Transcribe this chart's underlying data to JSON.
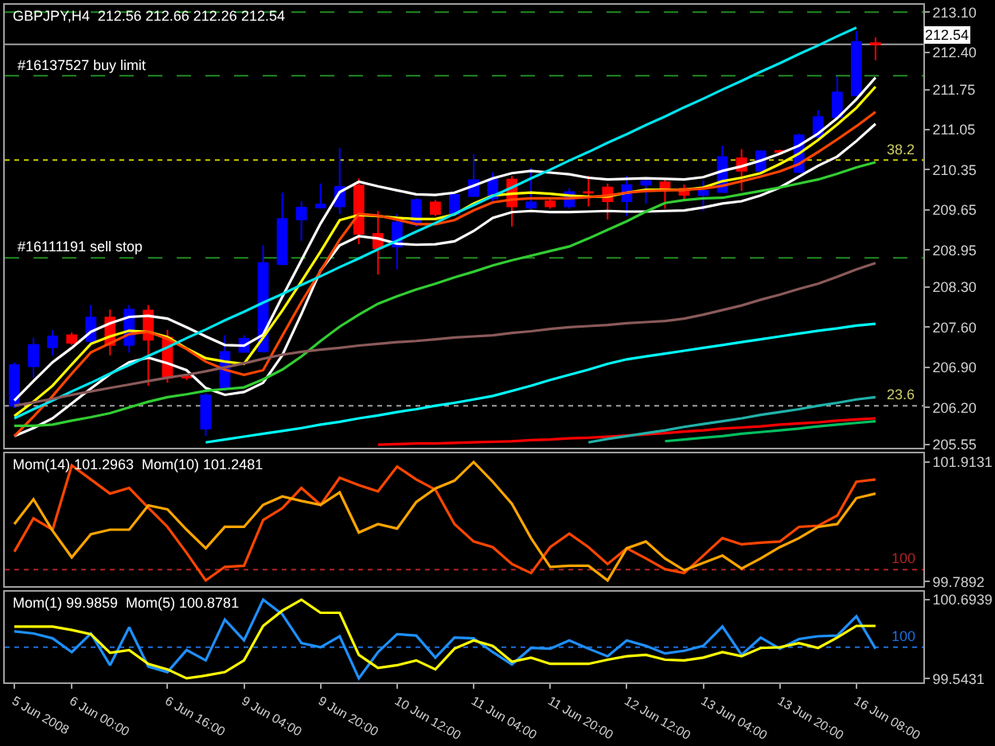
{
  "chart_data": [
    {
      "type": "candlestick",
      "title": "GBPJPY,H4  212.56 212.66 212.26 212.54",
      "categories": [
        null,
        null,
        null,
        null,
        null,
        null,
        null,
        null,
        null,
        null,
        null,
        null,
        null,
        null,
        null,
        null,
        null,
        null,
        null,
        null,
        null,
        null,
        null,
        null,
        null,
        null,
        null,
        null,
        null,
        null,
        null,
        null,
        null,
        null,
        null,
        null,
        null,
        null,
        null,
        null,
        null,
        null,
        null,
        null,
        null,
        null
      ],
      "ohlc": [
        [
          206.23,
          206.98,
          206.19,
          206.94
        ],
        [
          206.92,
          207.42,
          206.72,
          207.29
        ],
        [
          207.25,
          207.55,
          207.11,
          207.44
        ],
        [
          207.46,
          207.51,
          207.29,
          207.33
        ],
        [
          207.36,
          207.99,
          207.29,
          207.77
        ],
        [
          207.77,
          207.91,
          207.11,
          207.29
        ],
        [
          207.29,
          207.99,
          207.16,
          207.91
        ],
        [
          207.89,
          207.99,
          206.58,
          207.38
        ],
        [
          207.42,
          207.55,
          206.63,
          206.72
        ],
        [
          206.74,
          206.78,
          206.68,
          206.72
        ],
        [
          205.83,
          206.45,
          205.7,
          206.41
        ],
        [
          206.54,
          207.46,
          206.49,
          207.17
        ],
        [
          207.17,
          207.46,
          207.16,
          207.4
        ],
        [
          207.18,
          209.03,
          207.16,
          208.72
        ],
        [
          208.7,
          209.95,
          208.7,
          209.49
        ],
        [
          209.48,
          209.8,
          209.11,
          209.69
        ],
        [
          209.69,
          210.11,
          209.69,
          209.74
        ],
        [
          209.71,
          210.73,
          209.58,
          210.05
        ],
        [
          210.07,
          210.2,
          209.05,
          209.23
        ],
        [
          209.23,
          209.63,
          208.52,
          208.98
        ],
        [
          209.01,
          209.58,
          208.61,
          209.43
        ],
        [
          209.4,
          209.85,
          209.36,
          209.82
        ],
        [
          209.78,
          209.82,
          209.54,
          209.58
        ],
        [
          209.58,
          209.93,
          209.54,
          209.91
        ],
        [
          209.89,
          210.62,
          209.89,
          210.17
        ],
        [
          209.85,
          210.3,
          209.8,
          210.18
        ],
        [
          210.18,
          210.24,
          209.36,
          209.71
        ],
        [
          209.69,
          210.38,
          209.66,
          209.78
        ],
        [
          209.8,
          209.84,
          209.67,
          209.71
        ],
        [
          209.71,
          210.03,
          209.67,
          209.96
        ],
        [
          209.96,
          210.24,
          209.71,
          209.95
        ],
        [
          210.04,
          210.11,
          209.48,
          209.8
        ],
        [
          209.8,
          210.24,
          209.54,
          210.08
        ],
        [
          210.09,
          210.2,
          209.76,
          210.15
        ],
        [
          210.13,
          210.18,
          209.67,
          210.02
        ],
        [
          210.02,
          210.09,
          209.8,
          209.91
        ],
        [
          209.91,
          210.16,
          209.63,
          209.98
        ],
        [
          209.96,
          210.77,
          209.95,
          210.57
        ],
        [
          210.55,
          210.71,
          209.98,
          210.33
        ],
        [
          210.33,
          210.69,
          210.29,
          210.67
        ],
        [
          210.68,
          210.7,
          210.62,
          210.66
        ],
        [
          210.31,
          210.98,
          210.29,
          210.95
        ],
        [
          210.92,
          211.39,
          210.9,
          211.27
        ],
        [
          211.27,
          211.98,
          211.26,
          211.7
        ],
        [
          211.65,
          212.77,
          211.65,
          212.58
        ],
        [
          212.56,
          212.66,
          212.26,
          212.54
        ]
      ],
      "colors": [
        "#0000ff",
        "#0000ff",
        "#0000ff",
        "#ff0000",
        "#0000ff",
        "#ff0000",
        "#0000ff",
        "#ff0000",
        "#ff0000",
        "#ff0000",
        "#0000ff",
        "#0000ff",
        "#0000ff",
        "#0000ff",
        "#0000ff",
        "#0000ff",
        "#0000ff",
        "#0000ff",
        "#ff0000",
        "#ff0000",
        "#0000ff",
        "#0000ff",
        "#ff0000",
        "#0000ff",
        "#0000ff",
        "#0000ff",
        "#ff0000",
        "#0000ff",
        "#ff0000",
        "#0000ff",
        "#ff0000",
        "#ff0000",
        "#0000ff",
        "#0000ff",
        "#ff0000",
        "#ff0000",
        "#0000ff",
        "#0000ff",
        "#ff0000",
        "#0000ff",
        "#ff0000",
        "#0000ff",
        "#0000ff",
        "#0000ff",
        "#0000ff",
        "#ff0000"
      ],
      "series": [
        {
          "type": "line",
          "color": "#ffffff",
          "values": [
            206.32,
            206.66,
            206.99,
            207.24,
            207.52,
            207.67,
            207.78,
            207.8,
            207.75,
            207.6,
            207.44,
            207.29,
            207.28,
            207.47,
            208.13,
            208.77,
            209.41,
            209.96,
            210.14,
            210.06,
            209.99,
            209.92,
            209.91,
            209.95,
            210.07,
            210.2,
            210.29,
            210.33,
            210.3,
            210.27,
            210.21,
            210.18,
            210.19,
            210.2,
            210.19,
            210.18,
            210.22,
            210.33,
            210.41,
            210.51,
            210.63,
            210.77,
            210.98,
            211.25,
            211.58,
            211.96
          ]
        },
        {
          "type": "line",
          "color": "#ffffff",
          "values": [
            205.7,
            205.84,
            206.01,
            206.27,
            206.53,
            206.78,
            206.99,
            207.07,
            206.97,
            206.85,
            206.54,
            206.42,
            206.47,
            206.63,
            207.11,
            207.83,
            208.59,
            209.03,
            209.19,
            209.15,
            209.06,
            209.04,
            209.05,
            209.1,
            209.28,
            209.51,
            209.61,
            209.63,
            209.61,
            209.61,
            209.62,
            209.63,
            209.62,
            209.62,
            209.63,
            209.64,
            209.69,
            209.76,
            209.8,
            209.9,
            210.04,
            210.23,
            210.42,
            210.58,
            210.85,
            211.15
          ]
        },
        {
          "type": "line",
          "color": "#ffff00",
          "values": [
            206.05,
            206.3,
            206.58,
            206.95,
            207.31,
            207.44,
            207.54,
            207.52,
            207.43,
            207.23,
            207.06,
            207.0,
            206.96,
            207.42,
            207.89,
            208.4,
            208.92,
            209.47,
            209.56,
            209.54,
            209.51,
            209.49,
            209.49,
            209.57,
            209.76,
            209.9,
            209.93,
            209.95,
            209.93,
            209.9,
            209.88,
            209.88,
            209.95,
            210.0,
            210.0,
            210.0,
            210.04,
            210.15,
            210.21,
            210.29,
            210.45,
            210.63,
            210.87,
            211.14,
            211.43,
            211.8
          ]
        },
        {
          "type": "line",
          "color": "#ff4500",
          "values": [
            205.7,
            206.04,
            206.4,
            206.79,
            207.16,
            207.32,
            207.48,
            207.52,
            207.4,
            207.22,
            207.0,
            206.86,
            206.77,
            206.85,
            207.45,
            208.04,
            208.58,
            209.13,
            209.58,
            209.55,
            209.48,
            209.4,
            209.4,
            209.47,
            209.64,
            209.78,
            209.83,
            209.85,
            209.85,
            209.85,
            209.87,
            209.9,
            209.95,
            209.98,
            209.99,
            210.0,
            210.02,
            210.07,
            210.15,
            210.23,
            210.32,
            210.45,
            210.66,
            210.88,
            211.11,
            211.36
          ]
        },
        {
          "type": "line",
          "color": "#00e5ee",
          "values": [
            206.01,
            206.17,
            206.32,
            206.48,
            206.63,
            206.79,
            206.94,
            207.1,
            207.25,
            207.41,
            207.56,
            207.72,
            207.87,
            208.03,
            208.18,
            208.34,
            208.49,
            208.65,
            208.8,
            208.96,
            209.11,
            209.27,
            209.42,
            209.58,
            209.73,
            209.89,
            210.04,
            210.2,
            210.35,
            210.51,
            210.66,
            210.82,
            210.97,
            211.13,
            211.28,
            211.44,
            211.59,
            211.75,
            211.9,
            212.06,
            212.21,
            212.37,
            212.52,
            212.68,
            212.83,
            null
          ]
        },
        {
          "type": "line",
          "color": "#32cd32",
          "values": [
            205.88,
            205.88,
            205.9,
            205.97,
            206.03,
            206.1,
            206.2,
            206.3,
            206.38,
            206.43,
            206.49,
            206.52,
            206.55,
            206.69,
            206.86,
            207.09,
            207.36,
            207.61,
            207.82,
            208.01,
            208.14,
            208.26,
            208.36,
            208.47,
            208.57,
            208.68,
            208.77,
            208.85,
            208.93,
            209.01,
            209.15,
            209.3,
            209.45,
            209.62,
            209.77,
            209.82,
            209.85,
            209.86,
            209.92,
            209.98,
            210.04,
            210.11,
            210.18,
            210.28,
            210.39,
            210.48
          ]
        },
        {
          "type": "line",
          "color": "#8b5a5a",
          "values": [
            206.23,
            206.29,
            206.35,
            206.42,
            206.48,
            206.54,
            206.6,
            206.66,
            206.72,
            206.77,
            206.83,
            206.9,
            206.97,
            207.05,
            207.12,
            207.17,
            207.21,
            207.24,
            207.28,
            207.31,
            207.34,
            207.36,
            207.39,
            207.42,
            207.44,
            207.46,
            207.5,
            207.53,
            207.57,
            207.6,
            207.62,
            207.64,
            207.67,
            207.69,
            207.71,
            207.75,
            207.82,
            207.9,
            207.98,
            208.08,
            208.17,
            208.27,
            208.36,
            208.48,
            208.61,
            208.72
          ]
        },
        {
          "type": "line",
          "color": "#00ffff",
          "values": [
            null,
            null,
            null,
            null,
            null,
            null,
            null,
            null,
            null,
            null,
            205.59,
            205.64,
            205.69,
            205.74,
            205.79,
            205.84,
            205.9,
            205.95,
            206.01,
            206.06,
            206.12,
            206.17,
            206.23,
            206.28,
            206.34,
            206.4,
            206.49,
            206.58,
            206.68,
            206.77,
            206.86,
            206.96,
            207.04,
            207.09,
            207.14,
            207.19,
            207.24,
            207.29,
            207.34,
            207.39,
            207.44,
            207.49,
            207.54,
            207.58,
            207.63,
            207.66
          ]
        },
        {
          "type": "line",
          "color": "#ff0000",
          "values": [
            null,
            null,
            null,
            null,
            null,
            null,
            null,
            null,
            null,
            null,
            null,
            null,
            null,
            null,
            null,
            null,
            null,
            null,
            null,
            205.55,
            205.56,
            205.57,
            205.57,
            205.58,
            205.59,
            205.6,
            205.61,
            205.63,
            205.64,
            205.66,
            205.67,
            205.69,
            205.71,
            205.73,
            205.75,
            205.78,
            205.8,
            205.83,
            205.85,
            205.87,
            205.9,
            205.92,
            205.94,
            205.97,
            205.99,
            206.01
          ]
        },
        {
          "type": "line",
          "color": "#20b2aa",
          "values": [
            null,
            null,
            null,
            null,
            null,
            null,
            null,
            null,
            null,
            null,
            null,
            null,
            null,
            null,
            null,
            null,
            null,
            null,
            null,
            null,
            null,
            null,
            null,
            null,
            null,
            null,
            null,
            null,
            null,
            null,
            205.59,
            205.65,
            205.7,
            205.75,
            205.8,
            205.86,
            205.91,
            205.96,
            206.01,
            206.07,
            206.12,
            206.17,
            206.23,
            206.28,
            206.34,
            206.38
          ]
        },
        {
          "type": "line",
          "color": "#00c060",
          "values": [
            null,
            null,
            null,
            null,
            null,
            null,
            null,
            null,
            null,
            null,
            null,
            null,
            null,
            null,
            null,
            null,
            null,
            null,
            null,
            null,
            null,
            null,
            null,
            null,
            null,
            null,
            null,
            null,
            null,
            null,
            null,
            null,
            null,
            null,
            205.61,
            205.64,
            205.67,
            205.7,
            205.74,
            205.77,
            205.8,
            205.83,
            205.87,
            205.9,
            205.93,
            205.96
          ]
        }
      ],
      "ref_lines": [
        {
          "axis": "y",
          "value": 213.1,
          "color": "#228b22",
          "line_style": "dashed"
        },
        {
          "axis": "y",
          "value": 212.54,
          "label": "212.54",
          "color": "#a0a0a0",
          "line_style": "solid"
        },
        {
          "axis": "y",
          "value": 211.99,
          "label": "#16137527 buy limit",
          "color": "#228b22",
          "line_style": "dashed"
        },
        {
          "axis": "y",
          "value": 210.52,
          "color": "#cccc00",
          "line_style": "dotted"
        },
        {
          "axis": "y",
          "value": 208.81,
          "label": "#16111191 sell stop",
          "color": "#228b22",
          "line_style": "dashed"
        },
        {
          "axis": "y",
          "value": 206.23,
          "color": "#a0a0a0",
          "line_style": "dotted"
        }
      ],
      "annotations": [
        {
          "text": "38.2",
          "y": 210.52
        },
        {
          "text": "23.6",
          "y": 206.23
        }
      ],
      "ylim": [
        205.5,
        213.23
      ],
      "yticks": [
        {
          "value": 213.1,
          "label": "213.10"
        },
        {
          "value": 212.4,
          "label": "212.40"
        },
        {
          "value": 211.75,
          "label": "211.75"
        },
        {
          "value": 211.05,
          "label": "211.05"
        },
        {
          "value": 210.35,
          "label": "210.35"
        },
        {
          "value": 209.65,
          "label": "209.65"
        },
        {
          "value": 208.95,
          "label": "208.95"
        },
        {
          "value": 208.3,
          "label": "208.30"
        },
        {
          "value": 207.6,
          "label": "207.60"
        },
        {
          "value": 206.9,
          "label": "206.90"
        },
        {
          "value": 206.2,
          "label": "206.20"
        },
        {
          "value": 205.55,
          "label": "205.55"
        }
      ],
      "tick_labels": "y"
    },
    {
      "type": "line",
      "title": "Mom(14) 101.2963  Mom(10) 101.2481",
      "categories": [
        null,
        null,
        null,
        null,
        null,
        null,
        null,
        null,
        null,
        null,
        null,
        null,
        null,
        null,
        null,
        null,
        null,
        null,
        null,
        null,
        null,
        null,
        null,
        null,
        null,
        null,
        null,
        null,
        null,
        null,
        null,
        null,
        null,
        null,
        null,
        null,
        null,
        null,
        null,
        null,
        null,
        null,
        null,
        null,
        null,
        null
      ],
      "series": [
        {
          "color": "#ff4500",
          "values": [
            100.32,
            100.91,
            100.71,
            101.85,
            101.6,
            101.35,
            101.45,
            101.1,
            100.76,
            100.3,
            99.81,
            100.05,
            100.07,
            100.88,
            101.09,
            101.45,
            101.15,
            101.63,
            101.5,
            101.39,
            101.83,
            101.6,
            101.42,
            100.81,
            100.5,
            100.4,
            100.1,
            99.94,
            100.4,
            100.64,
            100.4,
            100.1,
            100.38,
            100.2,
            100.01,
            99.94,
            100.25,
            100.56,
            100.45,
            100.48,
            100.5,
            100.76,
            100.78,
            100.96,
            101.56,
            101.6
          ]
        },
        {
          "color": "#ffa500",
          "values": [
            100.81,
            101.25,
            100.69,
            100.22,
            100.63,
            100.71,
            100.71,
            101.14,
            101.07,
            100.71,
            100.38,
            100.76,
            100.76,
            101.15,
            101.3,
            101.22,
            101.15,
            101.37,
            100.66,
            100.81,
            100.73,
            101.2,
            101.44,
            101.58,
            101.91,
            101.56,
            101.17,
            100.56,
            100.05,
            100.07,
            100.07,
            99.81,
            100.38,
            100.5,
            100.2,
            99.99,
            100.12,
            100.25,
            100.02,
            100.2,
            100.4,
            100.56,
            100.76,
            100.81,
            101.27,
            101.35
          ]
        }
      ],
      "ref_lines": [
        {
          "axis": "y",
          "value": 100,
          "label": "100",
          "color": "#b22222",
          "line_style": "dotted"
        }
      ],
      "ylim": [
        99.71,
        102.06
      ],
      "yticks": [
        101.9131,
        99.7892
      ],
      "tick_labels": "y"
    },
    {
      "type": "line",
      "title": "Mom(1) 99.9859  Mom(5) 100.8781",
      "categories": [
        "5 Jun 2008",
        null,
        null,
        "6 Jun 00:00",
        null,
        null,
        null,
        null,
        "6 Jun 16:00",
        null,
        null,
        null,
        "9 Jun 04:00",
        null,
        null,
        null,
        "9 Jun 20:00",
        null,
        null,
        null,
        "10 Jun 12:00",
        null,
        null,
        null,
        "11 Jun 04:00",
        null,
        null,
        null,
        "11 Jun 20:00",
        null,
        null,
        null,
        "12 Jun 12:00",
        null,
        null,
        null,
        "13 Jun 04:00",
        null,
        null,
        null,
        "13 Jun 20:00",
        null,
        null,
        null,
        "16 Jun 08:00",
        null
      ],
      "series": [
        {
          "color": "#1e90ff",
          "values": [
            100.23,
            100.2,
            100.13,
            99.93,
            100.2,
            99.74,
            100.29,
            99.72,
            99.64,
            99.96,
            99.81,
            100.4,
            100.1,
            100.69,
            100.48,
            100.06,
            100.0,
            100.16,
            99.55,
            99.93,
            100.19,
            100.17,
            99.85,
            100.14,
            100.13,
            99.93,
            99.75,
            99.99,
            99.98,
            100.1,
            99.98,
            99.87,
            100.1,
            100.02,
            99.91,
            99.95,
            100.02,
            100.3,
            99.89,
            100.14,
            99.98,
            100.12,
            100.16,
            100.17,
            100.45,
            99.98
          ]
        },
        {
          "color": "#ffff00",
          "values": [
            100.3,
            100.3,
            100.3,
            100.25,
            100.19,
            99.92,
            99.96,
            99.76,
            99.68,
            99.55,
            99.59,
            99.64,
            99.81,
            100.31,
            100.53,
            100.69,
            100.5,
            100.5,
            99.89,
            99.7,
            99.74,
            99.81,
            99.68,
            99.98,
            100.1,
            100.02,
            99.79,
            99.85,
            99.76,
            99.76,
            99.76,
            99.82,
            99.87,
            99.89,
            99.82,
            99.81,
            99.85,
            99.93,
            99.87,
            99.99,
            100.0,
            100.06,
            99.99,
            100.14,
            100.31,
            100.31
          ]
        }
      ],
      "ref_lines": [
        {
          "axis": "y",
          "value": 100,
          "label": "100",
          "color": "#1e6fd9",
          "line_style": "dotted"
        }
      ],
      "ylim": [
        99.49,
        100.8
      ],
      "yticks": [
        100.6939,
        99.5431
      ]
    }
  ]
}
